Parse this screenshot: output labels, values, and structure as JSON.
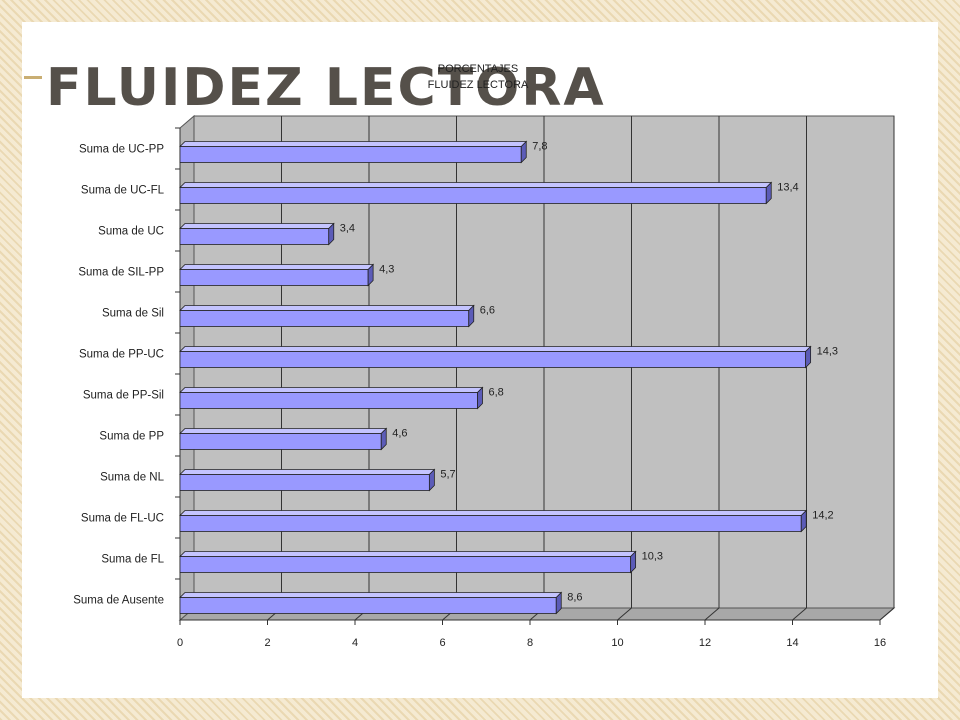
{
  "slide": {
    "title": "FLUIDEZ LECTORA"
  },
  "colors": {
    "bar_fill": "#9999ff",
    "bar_side": "#5c5cb8",
    "bar_top": "#c4c4ff",
    "plot_back": "#c0c0c0",
    "plot_floor": "#a8a8a8",
    "title_text": "#55504a",
    "frame_accent": "#f5ead2"
  },
  "chart_data": {
    "type": "bar",
    "orientation": "horizontal",
    "style": "3d",
    "title_lines": [
      "PORCENTAJES",
      "FLUIDEZ LECTORA"
    ],
    "categories": [
      "Suma de UC-PP",
      "Suma de UC-FL",
      "Suma de UC",
      "Suma de SIL-PP",
      "Suma de Sil",
      "Suma de PP-UC",
      "Suma de PP-Sil",
      "Suma de PP",
      "Suma de NL",
      "Suma de FL-UC",
      "Suma de FL",
      "Suma de Ausente"
    ],
    "values": [
      7.8,
      13.4,
      3.4,
      4.3,
      6.6,
      14.3,
      6.8,
      4.6,
      5.7,
      14.2,
      10.3,
      8.6
    ],
    "value_labels": [
      "7,8",
      "13,4",
      "3,4",
      "4,3",
      "6,6",
      "14,3",
      "6,8",
      "4,6",
      "5,7",
      "14,2",
      "10,3",
      "8,6"
    ],
    "x_ticks": [
      "0",
      "2",
      "4",
      "6",
      "8",
      "10",
      "12",
      "14",
      "16"
    ],
    "xlim": [
      0,
      16
    ],
    "grid": true,
    "legend": "none"
  }
}
